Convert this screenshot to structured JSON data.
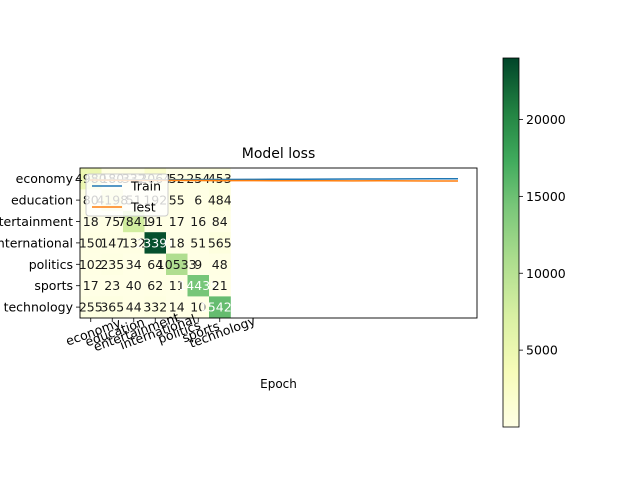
{
  "chart_data": [
    {
      "type": "heatmap",
      "title": "Model loss",
      "xlabel": "Epoch",
      "ylabel": "",
      "row_labels": [
        "economy",
        "education",
        "entertainment",
        "international",
        "politics",
        "sports",
        "technology"
      ],
      "col_labels": [
        "economy",
        "education",
        "entertainment",
        "international",
        "politics",
        "sports",
        "technology"
      ],
      "cell_values": [
        [
          "4980",
          "180",
          "332",
          "2064",
          "52",
          "254",
          "453"
        ],
        [
          "80",
          "4198",
          "51",
          "192",
          "55",
          "6",
          "484"
        ],
        [
          "18",
          "75",
          "7841",
          "91",
          "17",
          "16",
          "84"
        ],
        [
          "150",
          "147",
          "132",
          "23391",
          "18",
          "51",
          "565"
        ],
        [
          "102",
          "235",
          "34",
          "64",
          "10533",
          "9",
          "48"
        ],
        [
          "17",
          "23",
          "40",
          "62",
          "11",
          "14439",
          "21"
        ],
        [
          "255",
          "365",
          "44",
          "332",
          "14",
          "10",
          "15420"
        ]
      ],
      "colorbar": {
        "ticks": [
          "5000",
          "10000",
          "15000",
          "20000"
        ],
        "range": [
          0,
          24000
        ],
        "colormap": "YlGn"
      }
    },
    {
      "type": "line",
      "legend": {
        "entries": [
          "Train",
          "Test"
        ],
        "placement": "upper-left"
      },
      "series": [
        {
          "name": "Train",
          "color": "#1f77b4",
          "values": [
            0.5,
            0.501,
            0.502,
            0.503,
            0.504,
            0.505,
            0.506,
            0.507,
            0.508,
            0.509,
            0.51,
            0.51,
            0.511,
            0.512,
            0.512
          ]
        },
        {
          "name": "Test",
          "color": "#ff7f0e",
          "values": [
            0.5,
            0.497,
            0.496,
            0.496,
            0.495,
            0.494,
            0.494,
            0.493,
            0.493,
            0.492,
            0.491,
            0.492,
            0.491,
            0.49,
            0.49
          ]
        }
      ]
    }
  ]
}
